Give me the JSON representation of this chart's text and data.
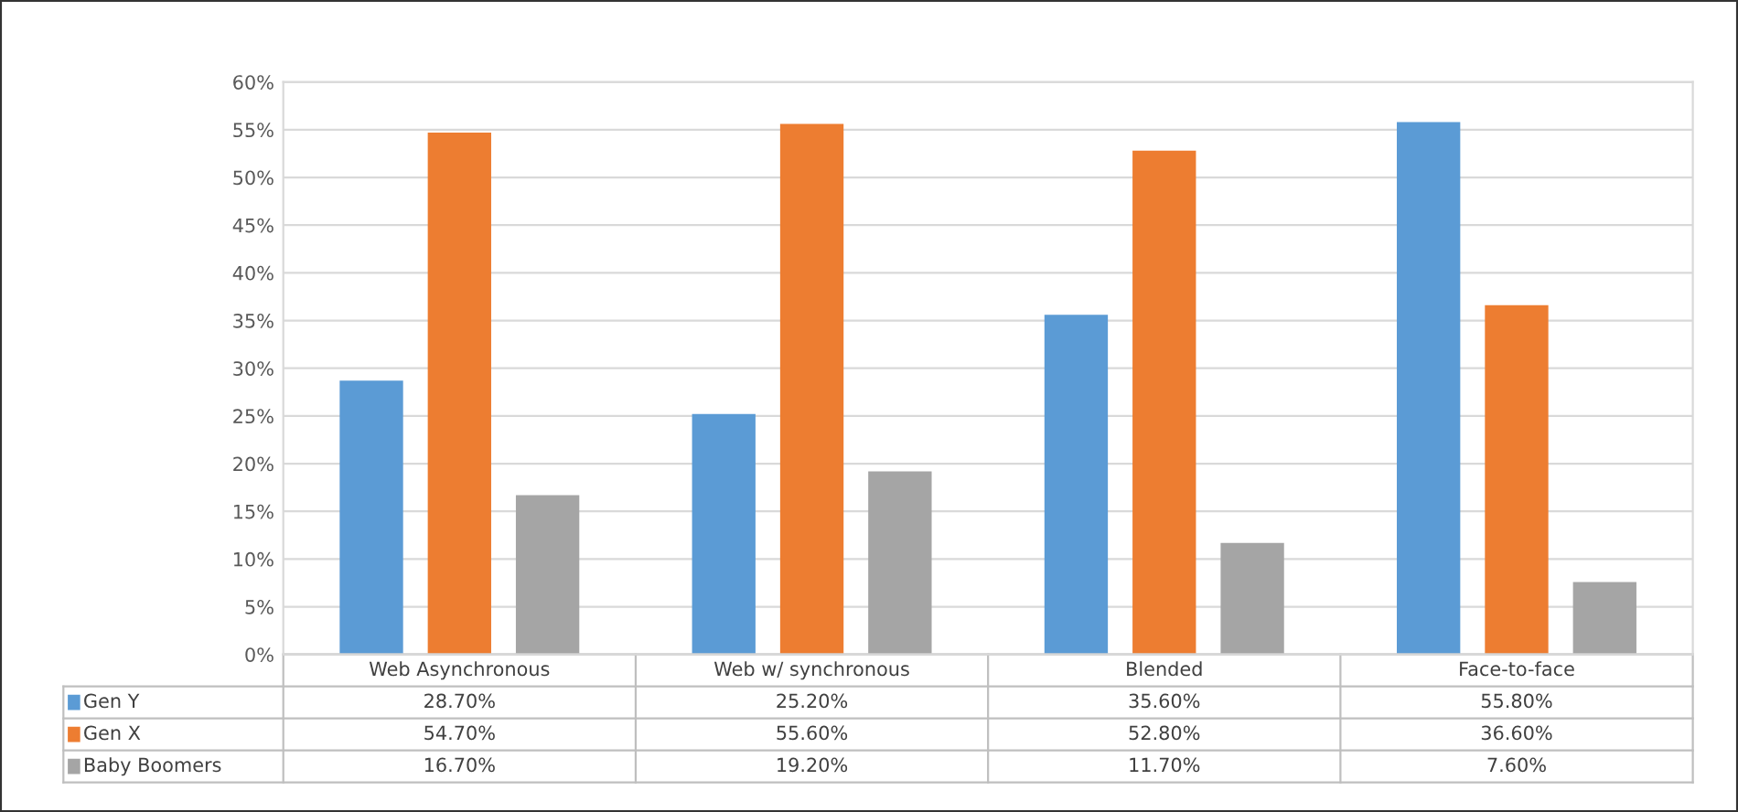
{
  "chart_data": {
    "type": "bar",
    "categories": [
      "Web Asynchronous",
      "Web w/ synchronous",
      "Blended",
      "Face-to-face"
    ],
    "series": [
      {
        "name": "Gen Y",
        "color": "#5b9bd5",
        "values": [
          28.7,
          25.2,
          35.6,
          55.8
        ],
        "value_labels": [
          "28.70%",
          "25.20%",
          "35.60%",
          "55.80%"
        ]
      },
      {
        "name": "Gen X",
        "color": "#ed7d31",
        "values": [
          54.7,
          55.6,
          52.8,
          36.6
        ],
        "value_labels": [
          "54.70%",
          "55.60%",
          "52.80%",
          "36.60%"
        ]
      },
      {
        "name": "Baby Boomers",
        "color": "#a5a5a5",
        "values": [
          16.7,
          19.2,
          11.7,
          7.6
        ],
        "value_labels": [
          "16.70%",
          "19.20%",
          "11.70%",
          "7.60%"
        ]
      }
    ],
    "ylim": [
      0,
      60
    ],
    "yticks": [
      {
        "value": 0,
        "label": "0%"
      },
      {
        "value": 5,
        "label": "5%"
      },
      {
        "value": 10,
        "label": "10%"
      },
      {
        "value": 15,
        "label": "15%"
      },
      {
        "value": 20,
        "label": "20%"
      },
      {
        "value": 25,
        "label": "25%"
      },
      {
        "value": 30,
        "label": "30%"
      },
      {
        "value": 35,
        "label": "35%"
      },
      {
        "value": 40,
        "label": "40%"
      },
      {
        "value": 45,
        "label": "45%"
      },
      {
        "value": 50,
        "label": "50%"
      },
      {
        "value": 55,
        "label": "55%"
      },
      {
        "value": 60,
        "label": "60%"
      }
    ],
    "grid": "y",
    "legend": "bottom left"
  }
}
